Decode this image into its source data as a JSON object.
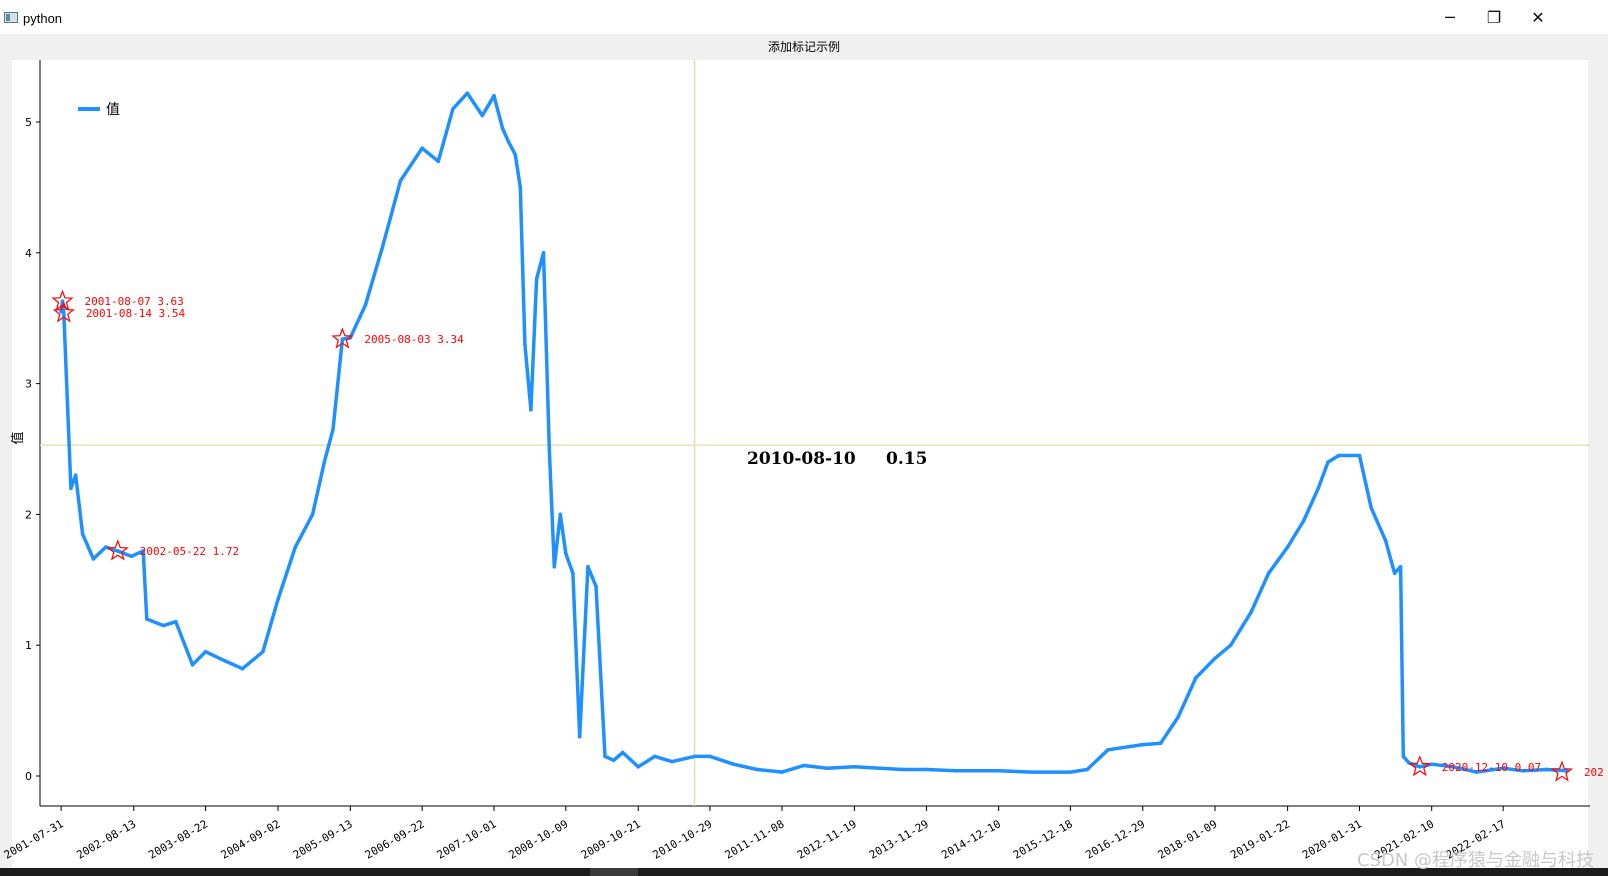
{
  "window": {
    "title": "python",
    "minimize_glyph": "─",
    "restore_glyph": "❐",
    "close_glyph": "✕"
  },
  "watermark": "CSDN @程序猿与金融与科技",
  "colors": {
    "line": "#1e90ff",
    "crosshair": "#e6e0b0",
    "marker": "#ff0000"
  },
  "crosshair": {
    "date_label": "2010-08-10",
    "value_label": "0.15",
    "x_date": "2010-08-10",
    "y_value": 2.53
  },
  "chart_data": {
    "type": "line",
    "title": "添加标记示例",
    "xlabel": "",
    "ylabel": "值",
    "ylim": [
      -0.22,
      5.5
    ],
    "xlim": [
      "2001-04-12",
      "2023-05-15"
    ],
    "grid": false,
    "legend": {
      "placement": "top-left",
      "entries": [
        "值"
      ]
    },
    "x_ticks": [
      "2001-07-31",
      "2002-08-13",
      "2003-08-22",
      "2004-09-02",
      "2005-09-13",
      "2006-09-22",
      "2007-10-01",
      "2008-10-09",
      "2009-10-21",
      "2010-10-29",
      "2011-11-08",
      "2012-11-19",
      "2013-11-29",
      "2014-12-10",
      "2015-12-18",
      "2016-12-29",
      "2018-01-09",
      "2019-01-22",
      "2020-01-31",
      "2021-02-10",
      "2022-02-17"
    ],
    "y_ticks": [
      0,
      1,
      2,
      3,
      4,
      5
    ],
    "series": [
      {
        "name": "值",
        "x": [
          "2001-07-31",
          "2001-08-07",
          "2001-08-14",
          "2001-09-20",
          "2001-10-15",
          "2001-11-20",
          "2002-01-15",
          "2002-03-20",
          "2002-05-22",
          "2002-08-01",
          "2002-10-01",
          "2002-10-20",
          "2003-01-15",
          "2003-03-20",
          "2003-06-15",
          "2003-08-22",
          "2003-12-01",
          "2004-03-01",
          "2004-06-15",
          "2004-09-02",
          "2004-12-01",
          "2005-03-01",
          "2005-05-01",
          "2005-06-15",
          "2005-08-03",
          "2005-09-13",
          "2005-12-01",
          "2006-03-01",
          "2006-06-01",
          "2006-09-22",
          "2006-12-15",
          "2007-03-01",
          "2007-05-15",
          "2007-08-01",
          "2007-10-01",
          "2007-11-15",
          "2007-12-15",
          "2008-01-20",
          "2008-02-15",
          "2008-03-10",
          "2008-04-10",
          "2008-05-10",
          "2008-06-15",
          "2008-07-15",
          "2008-08-10",
          "2008-09-10",
          "2008-10-09",
          "2008-11-15",
          "2008-12-20",
          "2009-02-01",
          "2009-03-15",
          "2009-05-01",
          "2009-06-15",
          "2009-08-01",
          "2009-10-21",
          "2010-01-15",
          "2010-04-15",
          "2010-08-10",
          "2010-10-29",
          "2011-03-01",
          "2011-07-01",
          "2011-11-08",
          "2012-03-01",
          "2012-07-01",
          "2012-11-19",
          "2013-04-01",
          "2013-08-01",
          "2013-11-29",
          "2014-05-01",
          "2014-12-10",
          "2015-06-01",
          "2015-12-18",
          "2016-03-15",
          "2016-07-01",
          "2016-12-29",
          "2017-04-01",
          "2017-07-01",
          "2017-10-01",
          "2018-01-09",
          "2018-04-01",
          "2018-07-15",
          "2018-10-15",
          "2019-01-22",
          "2019-04-15",
          "2019-07-01",
          "2019-08-20",
          "2019-10-15",
          "2020-01-31",
          "2020-04-01",
          "2020-06-15",
          "2020-08-01",
          "2020-09-01",
          "2020-09-15",
          "2020-10-15",
          "2020-12-10",
          "2021-02-10",
          "2021-06-01",
          "2021-10-01",
          "2022-02-17",
          "2022-06-01",
          "2022-10-01",
          "2023-01-15"
        ],
        "values": [
          3.55,
          3.63,
          3.54,
          2.2,
          2.3,
          1.85,
          1.66,
          1.75,
          1.72,
          1.68,
          1.72,
          1.2,
          1.15,
          1.18,
          0.85,
          0.95,
          0.88,
          0.82,
          0.95,
          1.35,
          1.75,
          2.0,
          2.4,
          2.65,
          3.34,
          3.35,
          3.6,
          4.05,
          4.55,
          4.8,
          4.7,
          5.1,
          5.22,
          5.05,
          5.2,
          4.95,
          4.85,
          4.75,
          4.5,
          3.3,
          2.8,
          3.8,
          4.0,
          2.5,
          1.6,
          2.0,
          1.7,
          1.55,
          0.3,
          1.6,
          1.45,
          0.15,
          0.12,
          0.18,
          0.07,
          0.15,
          0.11,
          0.15,
          0.15,
          0.09,
          0.05,
          0.03,
          0.08,
          0.06,
          0.07,
          0.06,
          0.05,
          0.05,
          0.04,
          0.04,
          0.03,
          0.03,
          0.05,
          0.2,
          0.24,
          0.25,
          0.45,
          0.75,
          0.9,
          1.0,
          1.25,
          1.55,
          1.75,
          1.95,
          2.2,
          2.4,
          2.45,
          2.45,
          2.05,
          1.8,
          1.55,
          1.6,
          0.15,
          0.1,
          0.07,
          0.09,
          0.07,
          0.03,
          0.06,
          0.04,
          0.05,
          0.04
        ]
      }
    ],
    "markers": [
      {
        "x": "2001-08-07",
        "y": 3.63,
        "label": "2001-08-07 3.63"
      },
      {
        "x": "2001-08-14",
        "y": 3.54,
        "label": "2001-08-14 3.54"
      },
      {
        "x": "2002-05-22",
        "y": 1.72,
        "label": "2002-05-22 1.72"
      },
      {
        "x": "2005-08-03",
        "y": 3.34,
        "label": "2005-08-03 3.34"
      },
      {
        "x": "2020-12-10",
        "y": 0.07,
        "label": "2020-12-10 0.07"
      },
      {
        "x": "2022-12-20",
        "y": 0.03,
        "label": "202"
      }
    ]
  }
}
